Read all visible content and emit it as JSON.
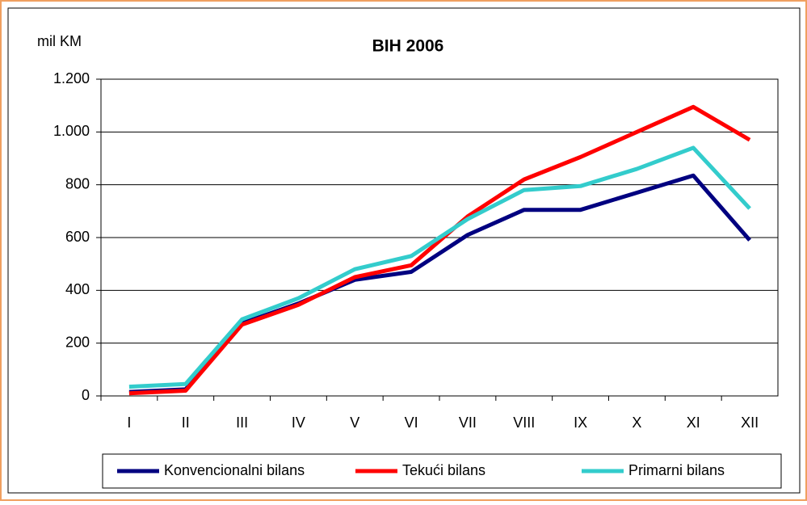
{
  "chart_data": {
    "type": "line",
    "title": "BIH 2006",
    "y_label": "mil KM",
    "categories": [
      "I",
      "II",
      "III",
      "IV",
      "V",
      "VI",
      "VII",
      "VIII",
      "IX",
      "X",
      "XI",
      "XII"
    ],
    "series": [
      {
        "name": "Konvencionalni bilans",
        "color": "#000080",
        "values": [
          15,
          25,
          275,
          350,
          440,
          470,
          610,
          705,
          705,
          770,
          835,
          590
        ]
      },
      {
        "name": "Tekući bilans",
        "color": "#ff0000",
        "values": [
          10,
          20,
          270,
          345,
          450,
          495,
          680,
          820,
          905,
          1000,
          1095,
          970
        ]
      },
      {
        "name": "Primarni bilans",
        "color": "#33cccc",
        "values": [
          35,
          45,
          290,
          370,
          480,
          530,
          670,
          780,
          795,
          860,
          940,
          710
        ]
      }
    ],
    "ylim": [
      0,
      1200
    ],
    "yticks": [
      0,
      200,
      400,
      600,
      800,
      {
        "value": 1000,
        "label": "1.000"
      },
      {
        "value": 1200,
        "label": "1.200"
      }
    ],
    "grid": true,
    "legend": "bottom"
  }
}
